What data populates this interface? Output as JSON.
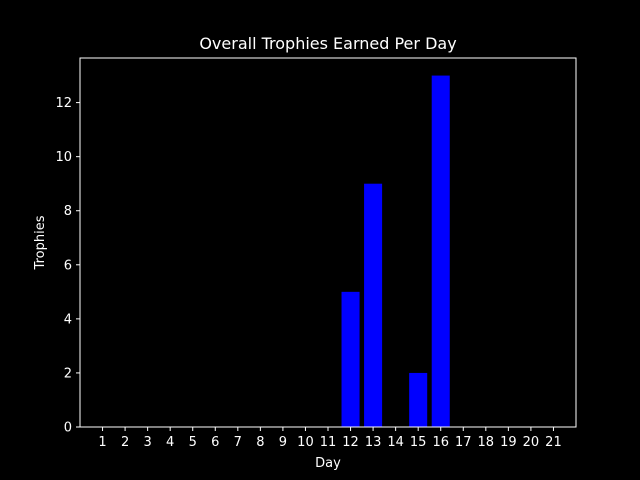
{
  "chart_data": {
    "type": "bar",
    "title": "Overall Trophies Earned Per Day",
    "xlabel": "Day",
    "ylabel": "Trophies",
    "categories": [
      "1",
      "2",
      "3",
      "4",
      "5",
      "6",
      "7",
      "8",
      "9",
      "10",
      "11",
      "12",
      "13",
      "14",
      "15",
      "16",
      "17",
      "18",
      "19",
      "20",
      "21"
    ],
    "values": [
      0,
      0,
      0,
      0,
      0,
      0,
      0,
      0,
      0,
      0,
      0,
      5,
      9,
      0,
      2,
      13,
      0,
      0,
      0,
      0,
      0
    ],
    "ylim": [
      0,
      13.65
    ],
    "yticks": [
      0,
      2,
      4,
      6,
      8,
      10,
      12
    ],
    "grid": false,
    "bar_color": "#0000ff",
    "background_color": "#000000",
    "foreground_color": "#ffffff"
  }
}
